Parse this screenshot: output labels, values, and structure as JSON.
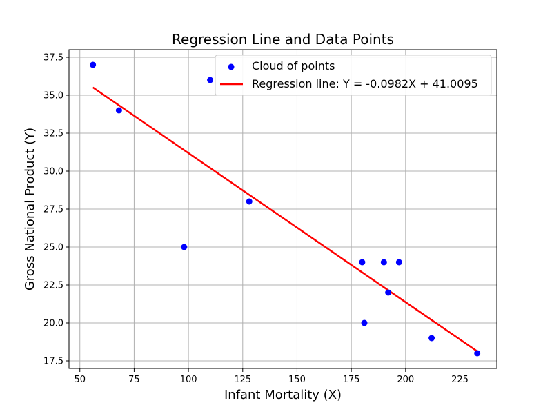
{
  "chart_data": {
    "type": "scatter",
    "title": "Regression Line and Data Points",
    "xlabel": "Infant Mortality (X)",
    "ylabel": "Gross National Product (Y)",
    "xlim": [
      45,
      242
    ],
    "ylim": [
      17.0,
      38.0
    ],
    "xticks": [
      50,
      75,
      100,
      125,
      150,
      175,
      200,
      225
    ],
    "yticks": [
      17.5,
      20.0,
      22.5,
      25.0,
      27.5,
      30.0,
      32.5,
      35.0,
      37.5
    ],
    "grid": true,
    "legend_position": "top-right",
    "series": [
      {
        "name": "Cloud of points",
        "kind": "scatter",
        "color": "#0000ff",
        "points": [
          {
            "x": 56,
            "y": 37.0
          },
          {
            "x": 68,
            "y": 34.0
          },
          {
            "x": 98,
            "y": 25.0
          },
          {
            "x": 110,
            "y": 36.0
          },
          {
            "x": 128,
            "y": 28.0
          },
          {
            "x": 180,
            "y": 24.0
          },
          {
            "x": 181,
            "y": 20.0
          },
          {
            "x": 190,
            "y": 24.0
          },
          {
            "x": 192,
            "y": 22.0
          },
          {
            "x": 197,
            "y": 24.0
          },
          {
            "x": 212,
            "y": 19.0
          },
          {
            "x": 233,
            "y": 18.0
          }
        ]
      },
      {
        "name": "Regression line: Y = -0.0982X + 41.0095",
        "kind": "line",
        "color": "#ff0000",
        "slope": -0.0982,
        "intercept": 41.0095,
        "x_range": [
          56,
          233
        ]
      }
    ]
  }
}
